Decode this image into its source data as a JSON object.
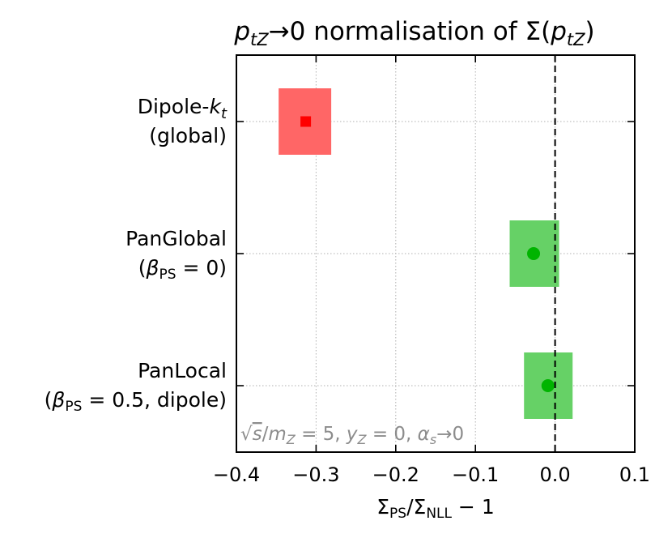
{
  "chart_data": {
    "type": "scatter",
    "title_parts": [
      "p",
      "tZ",
      "→0 normalisation of Σ(",
      "p",
      "tZ",
      ")"
    ],
    "title": "p_tZ→0 normalisation of Σ(p_tZ)",
    "xlabel_parts": [
      "Σ",
      "PS",
      "/Σ",
      "NLL",
      " − 1"
    ],
    "xlabel": "Σ_PS/Σ_NLL − 1",
    "xlim": [
      -0.4,
      0.1
    ],
    "xticks": [
      -0.4,
      -0.3,
      -0.2,
      -0.1,
      0.0,
      0.1
    ],
    "xtick_labels": [
      "−0.4",
      "−0.3",
      "−0.2",
      "−0.1",
      "0.0",
      "0.1"
    ],
    "grid": true,
    "reference_line": 0.0,
    "annotation_parts": [
      "√",
      "s",
      "/",
      "m",
      "Z",
      " = 5, ",
      "y",
      "Z",
      " = 0, ",
      "α",
      "s",
      "→0"
    ],
    "annotation": "√s/m_Z = 5, y_Z = 0, α_s→0",
    "categories": [
      {
        "line1_parts": [
          "Dipole-",
          "k",
          "t"
        ],
        "line2_parts": [
          "(global)"
        ],
        "label": "Dipole-k_t (global)",
        "value": -0.313,
        "band": [
          -0.347,
          -0.281
        ],
        "marker": "square",
        "point_color": "#ff0000",
        "band_color": "#ff6666"
      },
      {
        "line1_parts": [
          "PanGlobal"
        ],
        "line2_parts": [
          "(",
          "β",
          "PS",
          " = 0)"
        ],
        "label": "PanGlobal (β_PS = 0)",
        "value": -0.027,
        "band": [
          -0.057,
          0.005
        ],
        "marker": "circle",
        "point_color": "#00b400",
        "band_color": "#66d166"
      },
      {
        "line1_parts": [
          "PanLocal"
        ],
        "line2_parts": [
          "(",
          "β",
          "PS",
          " = 0.5, dipole)"
        ],
        "label": "PanLocal (β_PS = 0.5, dipole)",
        "value": -0.009,
        "band": [
          -0.039,
          0.022
        ],
        "marker": "circle",
        "point_color": "#00b400",
        "band_color": "#66d166"
      }
    ]
  }
}
